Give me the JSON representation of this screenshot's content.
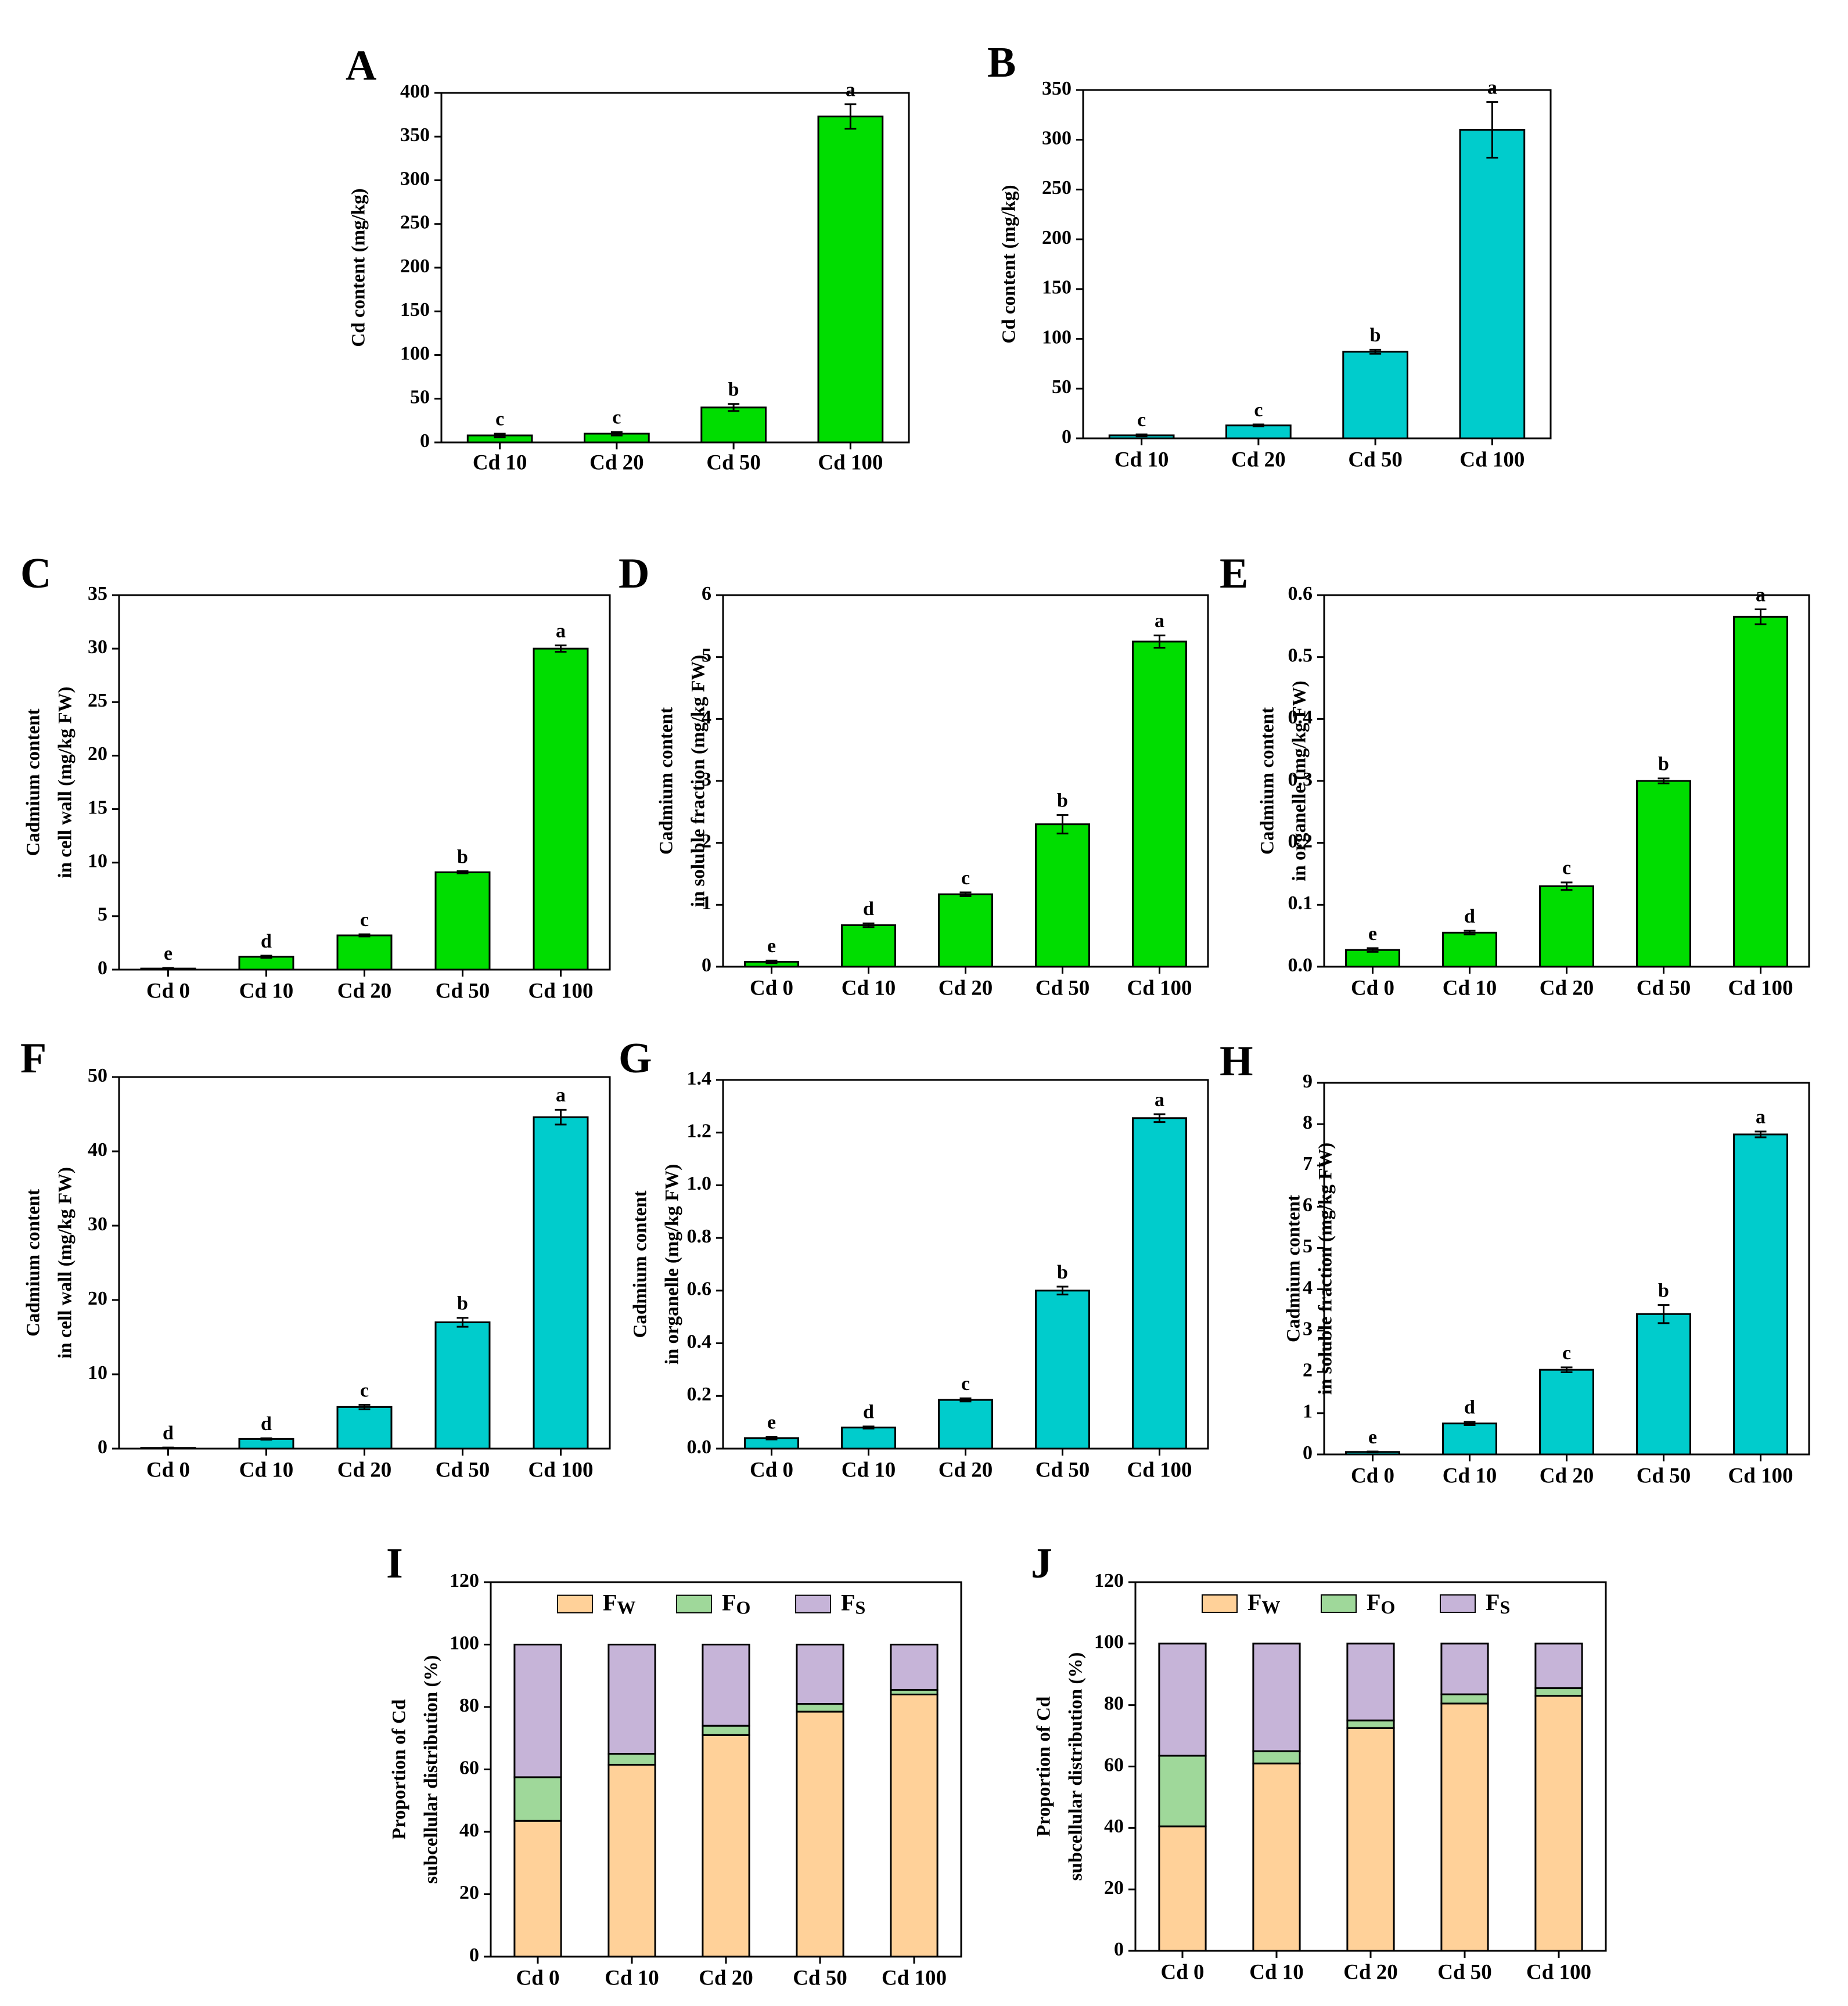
{
  "figure": {
    "description_note": ""
  },
  "colors": {
    "green": "#00dd00",
    "cyan": "#00cccc",
    "fw": "#ffd199",
    "fo": "#9fd89a",
    "fs": "#c6b4d8",
    "stroke": "#000000"
  },
  "chart_data": [
    {
      "id": "A",
      "type": "bar",
      "panel_label": "A",
      "color": "#00dd00",
      "categories": [
        "Cd 10",
        "Cd 20",
        "Cd 50",
        "Cd 100"
      ],
      "values": [
        8,
        10,
        40,
        373
      ],
      "errors": [
        2,
        2,
        4,
        14
      ],
      "letters": [
        "c",
        "c",
        "b",
        "a"
      ],
      "ylabel": [
        "Cd content (mg/kg)"
      ],
      "ylim": [
        0,
        400
      ],
      "yticks": [
        0,
        50,
        100,
        150,
        200,
        250,
        300,
        350,
        400
      ],
      "ytick_labels": [
        "0",
        "50",
        "100",
        "150",
        "200",
        "250",
        "300",
        "350",
        "400"
      ]
    },
    {
      "id": "B",
      "type": "bar",
      "panel_label": "B",
      "color": "#00cccc",
      "categories": [
        "Cd 10",
        "Cd 20",
        "Cd 50",
        "Cd 100"
      ],
      "values": [
        3,
        13,
        87,
        310
      ],
      "errors": [
        1,
        1,
        2,
        28
      ],
      "letters": [
        "c",
        "c",
        "b",
        "a"
      ],
      "ylabel": [
        "Cd content (mg/kg)"
      ],
      "ylim": [
        0,
        350
      ],
      "yticks": [
        0,
        50,
        100,
        150,
        200,
        250,
        300,
        350
      ],
      "ytick_labels": [
        "0",
        "50",
        "100",
        "150",
        "200",
        "250",
        "300",
        "350"
      ]
    },
    {
      "id": "C",
      "type": "bar",
      "panel_label": "C",
      "color": "#00dd00",
      "categories": [
        "Cd 0",
        "Cd 10",
        "Cd 20",
        "Cd 50",
        "Cd 100"
      ],
      "values": [
        0.1,
        1.2,
        3.2,
        9.1,
        30.0
      ],
      "errors": [
        0.05,
        0.1,
        0.1,
        0.1,
        0.3
      ],
      "letters": [
        "e",
        "d",
        "c",
        "b",
        "a"
      ],
      "ylabel": [
        "Cadmium content",
        "in cell wall (mg/kg FW)"
      ],
      "ylim": [
        0,
        35
      ],
      "yticks": [
        0,
        5,
        10,
        15,
        20,
        25,
        30,
        35
      ],
      "ytick_labels": [
        "0",
        "5",
        "10",
        "15",
        "20",
        "25",
        "30",
        "35"
      ]
    },
    {
      "id": "D",
      "type": "bar",
      "panel_label": "D",
      "color": "#00dd00",
      "categories": [
        "Cd 0",
        "Cd 10",
        "Cd 20",
        "Cd 50",
        "Cd 100"
      ],
      "values": [
        0.08,
        0.67,
        1.17,
        2.3,
        5.25
      ],
      "errors": [
        0.02,
        0.03,
        0.03,
        0.15,
        0.1
      ],
      "letters": [
        "e",
        "d",
        "c",
        "b",
        "a"
      ],
      "ylabel": [
        "Cadmium content",
        "in soluble fraction  (mg/kg FW)"
      ],
      "ylim": [
        0,
        6
      ],
      "yticks": [
        0,
        1,
        2,
        3,
        4,
        5,
        6
      ],
      "ytick_labels": [
        "0",
        "1",
        "2",
        "3",
        "4",
        "5",
        "6"
      ]
    },
    {
      "id": "E",
      "type": "bar",
      "panel_label": "E",
      "color": "#00dd00",
      "categories": [
        "Cd 0",
        "Cd 10",
        "Cd 20",
        "Cd 50",
        "Cd 100"
      ],
      "values": [
        0.027,
        0.055,
        0.13,
        0.3,
        0.565
      ],
      "errors": [
        0.003,
        0.003,
        0.006,
        0.004,
        0.012
      ],
      "letters": [
        "e",
        "d",
        "c",
        "b",
        "a"
      ],
      "ylabel": [
        "Cadmium content",
        "in organelle (mg/kg FW)"
      ],
      "ylim": [
        0,
        0.6
      ],
      "yticks": [
        0,
        0.1,
        0.2,
        0.3,
        0.4,
        0.5,
        0.6
      ],
      "ytick_labels": [
        "0.0",
        "0.1",
        "0.2",
        "0.3",
        "0.4",
        "0.5",
        "0.6"
      ]
    },
    {
      "id": "F",
      "type": "bar",
      "panel_label": "F",
      "color": "#00cccc",
      "categories": [
        "Cd 0",
        "Cd 10",
        "Cd 20",
        "Cd 50",
        "Cd 100"
      ],
      "values": [
        0.1,
        1.3,
        5.6,
        17.0,
        44.6
      ],
      "errors": [
        0.05,
        0.1,
        0.3,
        0.6,
        1.0
      ],
      "letters": [
        "d",
        "d",
        "c",
        "b",
        "a"
      ],
      "ylabel": [
        "Cadmium content",
        "in cell wall (mg/kg FW)"
      ],
      "ylim": [
        0,
        50
      ],
      "yticks": [
        0,
        10,
        20,
        30,
        40,
        50
      ],
      "ytick_labels": [
        "0",
        "10",
        "20",
        "30",
        "40",
        "50"
      ]
    },
    {
      "id": "G",
      "type": "bar",
      "panel_label": "G",
      "color": "#00cccc",
      "categories": [
        "Cd 0",
        "Cd 10",
        "Cd 20",
        "Cd 50",
        "Cd 100"
      ],
      "values": [
        0.04,
        0.08,
        0.185,
        0.6,
        1.255
      ],
      "errors": [
        0.005,
        0.004,
        0.006,
        0.015,
        0.015
      ],
      "letters": [
        "e",
        "d",
        "c",
        "b",
        "a"
      ],
      "ylabel": [
        "Cadmium content",
        "in organelle (mg/kg FW)"
      ],
      "ylim": [
        0,
        1.4
      ],
      "yticks": [
        0,
        0.2,
        0.4,
        0.6,
        0.8,
        1.0,
        1.2,
        1.4
      ],
      "ytick_labels": [
        "0.0",
        "0.2",
        "0.4",
        "0.6",
        "0.8",
        "1.0",
        "1.2",
        "1.4"
      ]
    },
    {
      "id": "H",
      "type": "bar",
      "panel_label": "H",
      "color": "#00cccc",
      "categories": [
        "Cd 0",
        "Cd 10",
        "Cd 20",
        "Cd 50",
        "Cd 100"
      ],
      "values": [
        0.06,
        0.75,
        2.05,
        3.4,
        7.75
      ],
      "errors": [
        0.01,
        0.04,
        0.06,
        0.22,
        0.07
      ],
      "letters": [
        "e",
        "d",
        "c",
        "b",
        "a"
      ],
      "ylabel": [
        "Cadmium content",
        "in soluble fraction (mg/kg FW)"
      ],
      "ylim": [
        0,
        9
      ],
      "yticks": [
        0,
        1,
        2,
        3,
        4,
        5,
        6,
        7,
        8,
        9
      ],
      "ytick_labels": [
        "0",
        "1",
        "2",
        "3",
        "4",
        "5",
        "6",
        "7",
        "8",
        "9"
      ]
    },
    {
      "id": "I",
      "type": "stacked-bar",
      "panel_label": "I",
      "categories": [
        "Cd 0",
        "Cd 10",
        "Cd 20",
        "Cd 50",
        "Cd 100"
      ],
      "series": [
        {
          "name": "Fw",
          "base": "F",
          "sub": "W",
          "color": "#ffd199",
          "values": [
            43.5,
            61.5,
            71,
            78.5,
            84
          ]
        },
        {
          "name": "Fo",
          "base": "F",
          "sub": "O",
          "color": "#9fd89a",
          "values": [
            14,
            3.5,
            3,
            2.5,
            1.5
          ]
        },
        {
          "name": "Fs",
          "base": "F",
          "sub": "S",
          "color": "#c6b4d8",
          "values": [
            42.5,
            35,
            26,
            19,
            14.5
          ]
        }
      ],
      "ylabel": [
        "Proportion of Cd",
        "subcellular distribution  (%)"
      ],
      "ylim": [
        0,
        120
      ],
      "yticks": [
        0,
        20,
        40,
        60,
        80,
        100,
        120
      ],
      "ytick_labels": [
        "0",
        "20",
        "40",
        "60",
        "80",
        "100",
        "120"
      ],
      "legend": "top"
    },
    {
      "id": "J",
      "type": "stacked-bar",
      "panel_label": "J",
      "categories": [
        "Cd 0",
        "Cd 10",
        "Cd 20",
        "Cd 50",
        "Cd 100"
      ],
      "series": [
        {
          "name": "Fw",
          "base": "F",
          "sub": "W",
          "color": "#ffd199",
          "values": [
            40.5,
            61,
            72.5,
            80.5,
            83
          ]
        },
        {
          "name": "Fo",
          "base": "F",
          "sub": "O",
          "color": "#9fd89a",
          "values": [
            23,
            4,
            2.5,
            3,
            2.5
          ]
        },
        {
          "name": "Fs",
          "base": "F",
          "sub": "S",
          "color": "#c6b4d8",
          "values": [
            36.5,
            35,
            25,
            16.5,
            14.5
          ]
        }
      ],
      "ylabel": [
        "Proportion of Cd",
        "subcellular distribution (%)"
      ],
      "ylim": [
        0,
        120
      ],
      "yticks": [
        0,
        20,
        40,
        60,
        80,
        100,
        120
      ],
      "ytick_labels": [
        "0",
        "20",
        "40",
        "60",
        "80",
        "100",
        "120"
      ],
      "legend": "top"
    }
  ]
}
